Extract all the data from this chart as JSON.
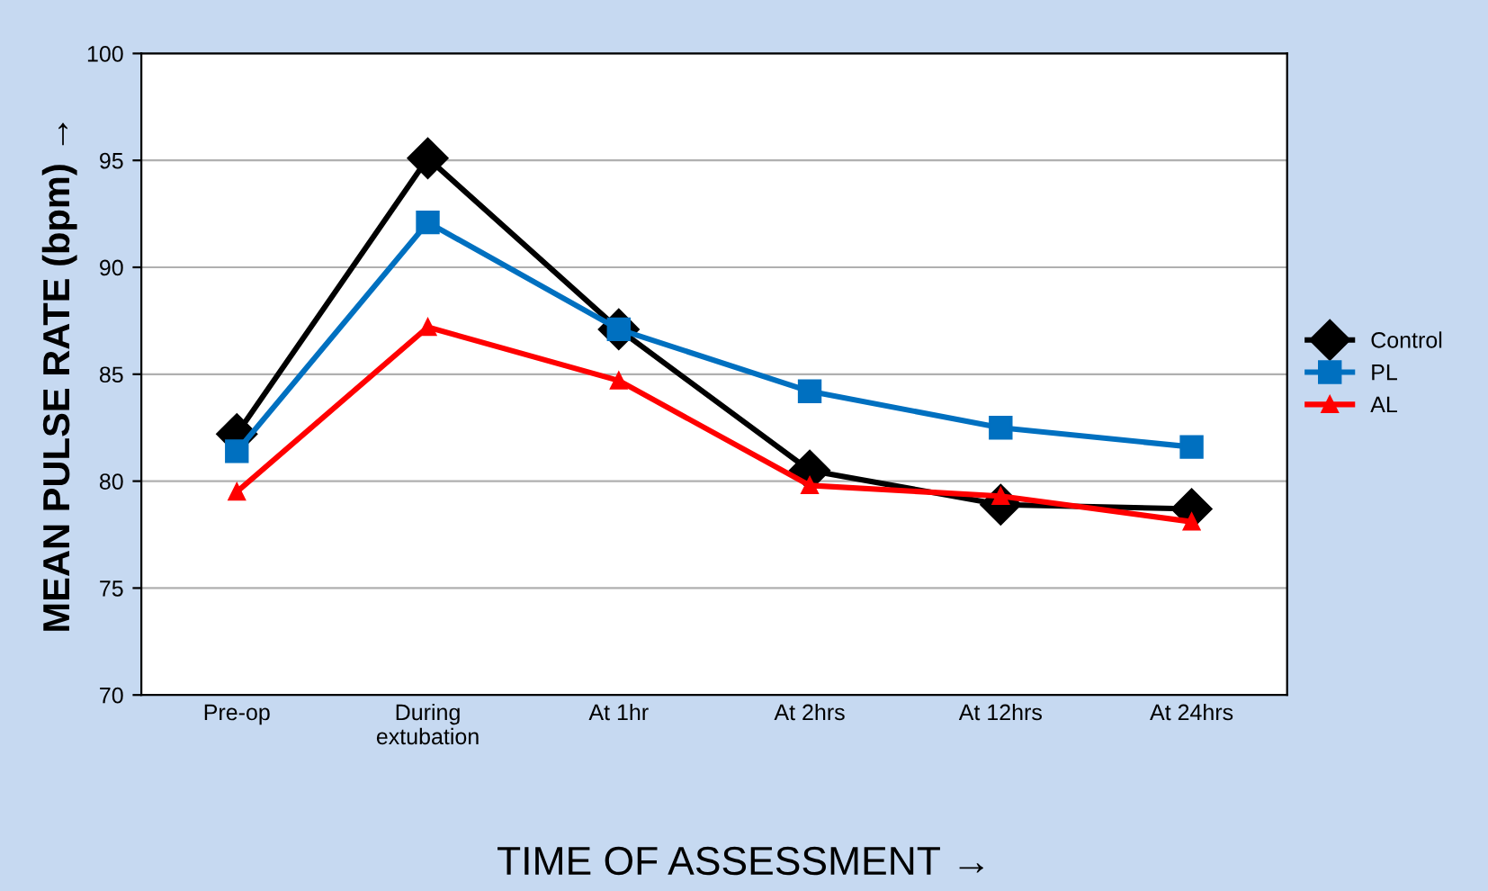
{
  "chart_data": {
    "type": "line",
    "xlabel": "TIME OF ASSESSMENT →",
    "ylabel": "MEAN PULSE RATE (bpm) →",
    "categories": [
      "Pre-op",
      "During\nextubation",
      "At 1hr",
      "At 2hrs",
      "At 12hrs",
      "At 24hrs"
    ],
    "series": [
      {
        "name": "Control",
        "color": "#000000",
        "marker": "diamond",
        "values": [
          82.2,
          95.1,
          87.1,
          80.5,
          78.9,
          78.7
        ]
      },
      {
        "name": "PL",
        "color": "#0070c0",
        "marker": "square",
        "values": [
          81.4,
          92.1,
          87.1,
          84.2,
          82.5,
          81.6
        ]
      },
      {
        "name": "AL",
        "color": "#ff0000",
        "marker": "triangle",
        "values": [
          79.5,
          87.2,
          84.7,
          79.8,
          79.3,
          78.1
        ]
      }
    ],
    "ylim": [
      70,
      100
    ],
    "yticks": [
      70,
      75,
      80,
      85,
      90,
      95,
      100
    ],
    "grid": "y",
    "legend": "right"
  }
}
